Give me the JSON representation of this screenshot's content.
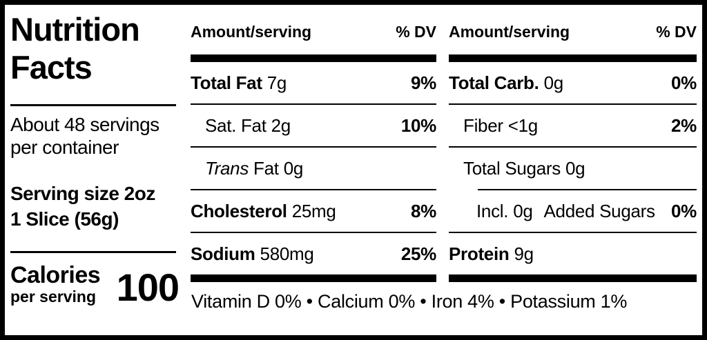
{
  "panel": {
    "title_line1": "Nutrition",
    "title_line2": "Facts",
    "servings_line1": "About 48 servings",
    "servings_line2": "per container",
    "serving_size_line1": "Serving size 2oz",
    "serving_size_line2": "1 Slice (56g)",
    "calories_label": "Calories",
    "calories_sublabel": "per serving",
    "calories_value": "100"
  },
  "mid_column": {
    "header_amount": "Amount/serving",
    "header_dv": "% DV",
    "rows": [
      {
        "name": "Total Fat",
        "amount": "7g",
        "dv": "9%"
      },
      {
        "name": "Sat. Fat",
        "amount": "2g",
        "dv": "10%"
      },
      {
        "name_italic": "Trans",
        "name": "Fat",
        "amount": "0g",
        "dv": ""
      },
      {
        "name": "Cholesterol",
        "amount": "25mg",
        "dv": "8%"
      },
      {
        "name": "Sodium",
        "amount": "580mg",
        "dv": "25%"
      }
    ]
  },
  "right_column": {
    "header_amount": "Amount/serving",
    "header_dv": "% DV",
    "rows": [
      {
        "name": "Total Carb.",
        "amount": "0g",
        "dv": "0%"
      },
      {
        "name": "Fiber",
        "amount": "<1g",
        "dv": "2%"
      },
      {
        "name": "Total Sugars",
        "amount": "0g",
        "dv": ""
      },
      {
        "name": "Incl.",
        "amount": "0g",
        "name2": "Added Sugars",
        "dv": "0%"
      },
      {
        "name": "Protein",
        "amount": "9g",
        "dv": ""
      }
    ]
  },
  "footer": {
    "vitamins": "Vitamin D 0% • Calcium 0% • Iron 4% • Potassium 1%"
  },
  "colors": {
    "ink": "#000000",
    "paper": "#ffffff"
  }
}
